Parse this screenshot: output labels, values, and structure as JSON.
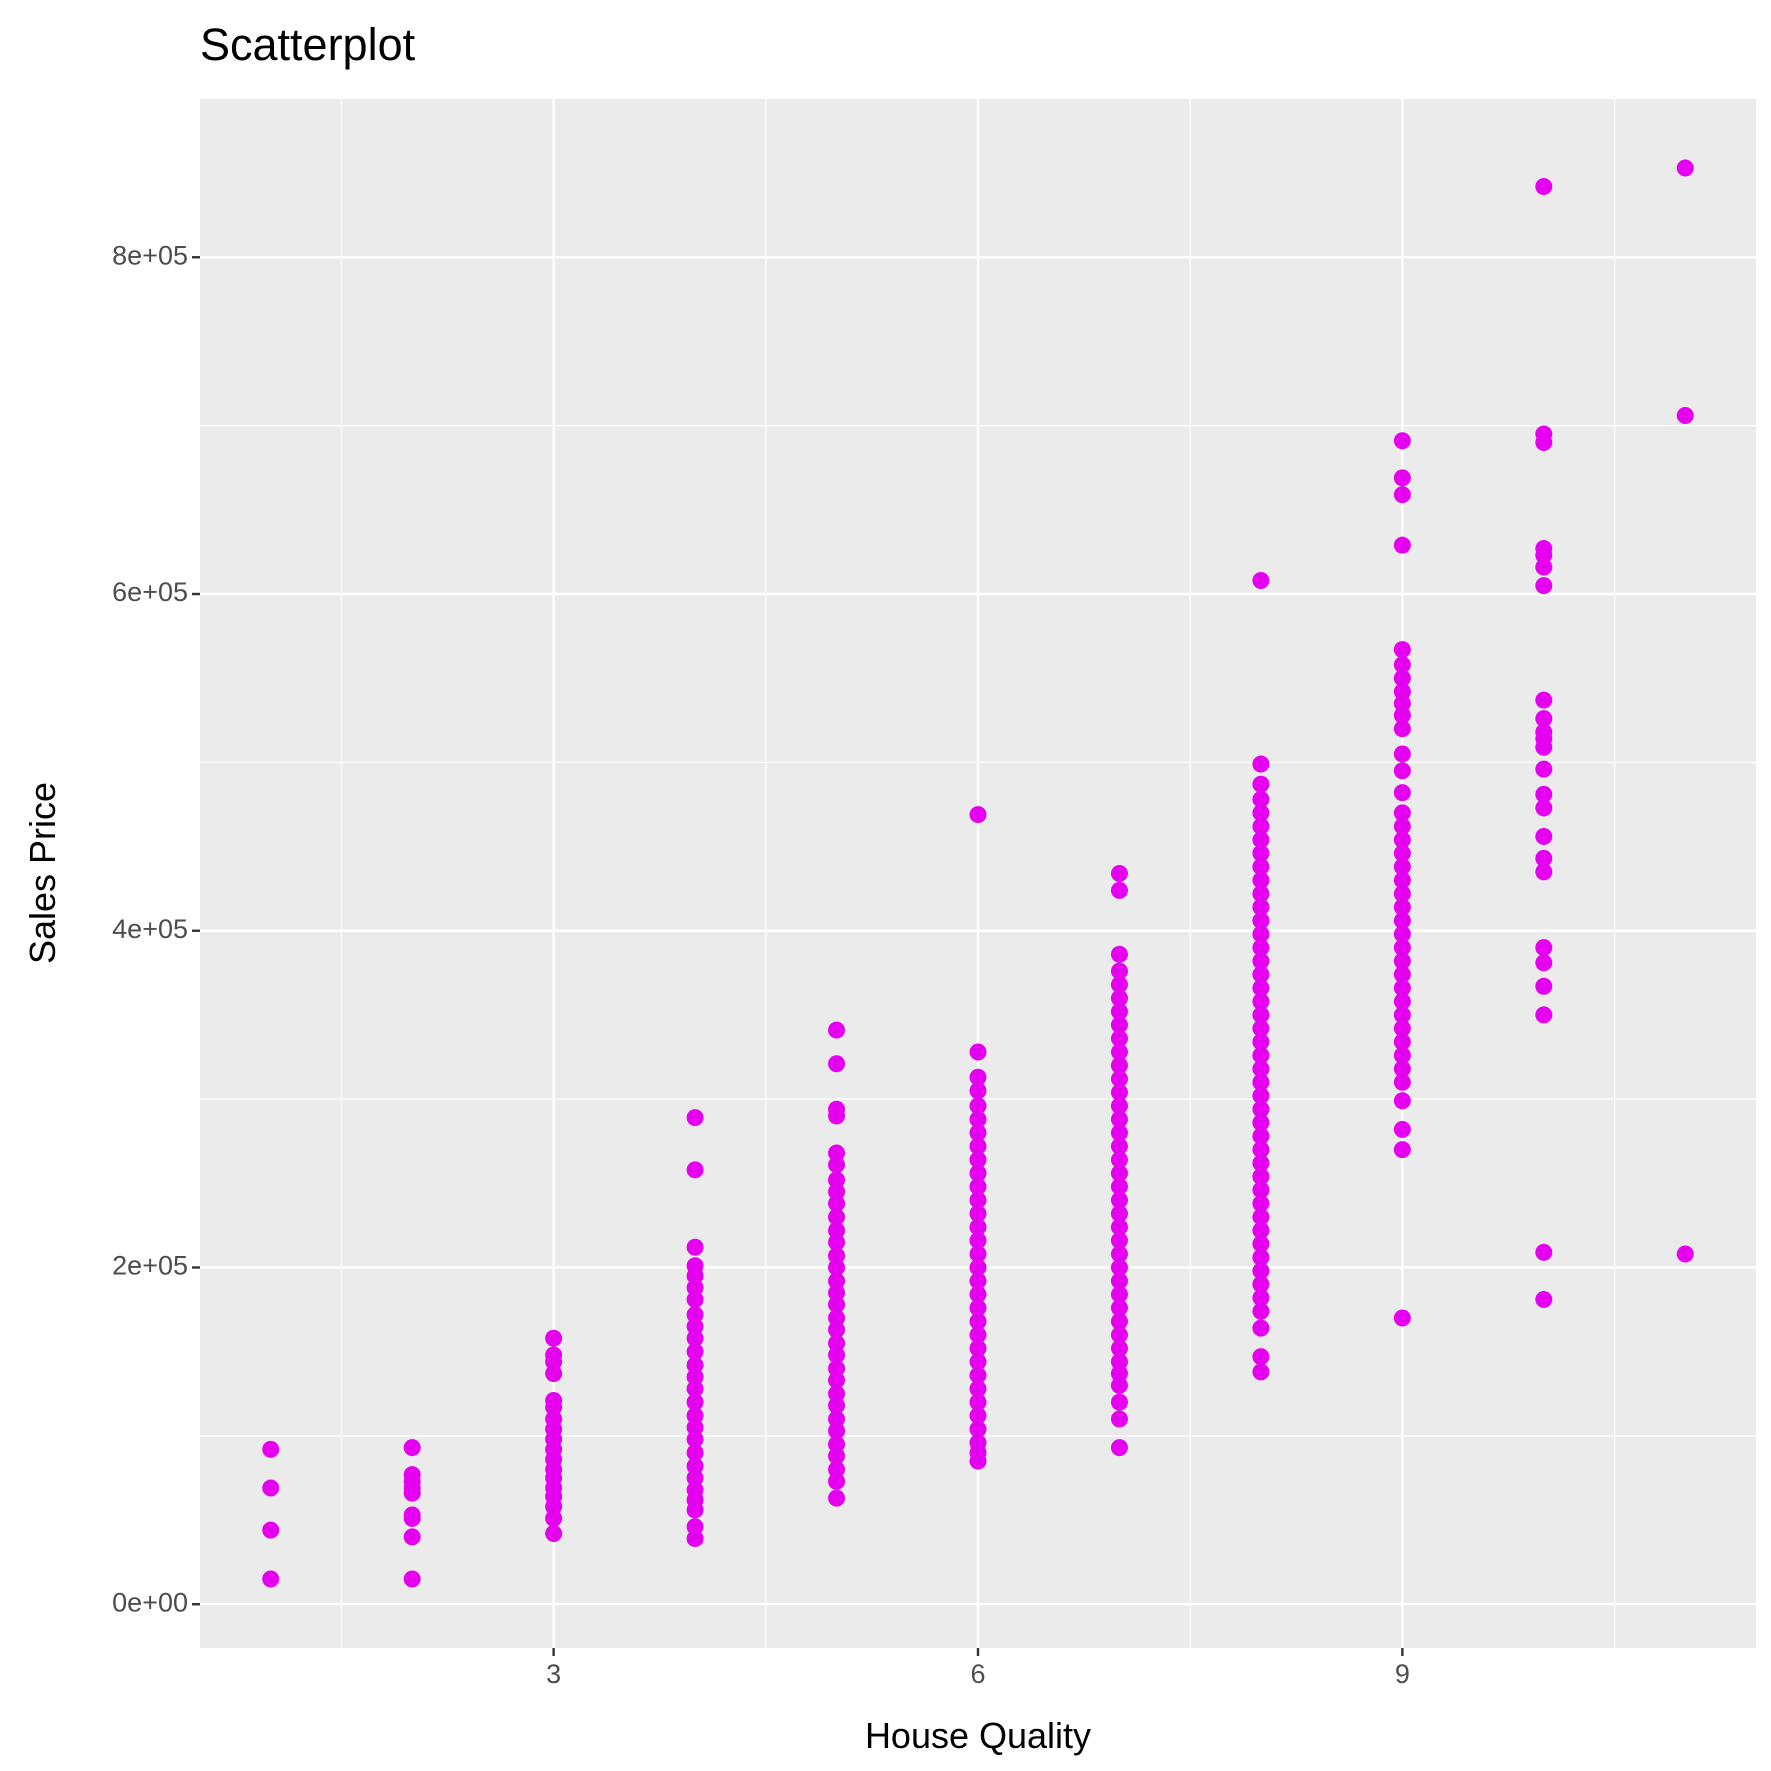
{
  "chart_data": {
    "type": "scatter",
    "title": "Scatterplot",
    "x_label": "House Quality",
    "y_label": "Sales Price",
    "color": "#e600f0",
    "grid": true,
    "xlim": [
      0.5,
      11.5
    ],
    "ylim": [
      -26000,
      894000
    ],
    "xticks": [
      3,
      6,
      9
    ],
    "yticks": [
      {
        "value": 0,
        "label": "0e+00"
      },
      {
        "value": 200000,
        "label": "2e+05"
      },
      {
        "value": 400000,
        "label": "4e+05"
      },
      {
        "value": 600000,
        "label": "6e+05"
      },
      {
        "value": 800000,
        "label": "8e+05"
      }
    ],
    "xminor": [
      1.5,
      4.5,
      7.5,
      10.5
    ],
    "yminor": [
      100000,
      300000,
      500000,
      700000
    ],
    "x": [
      1,
      1,
      1,
      1,
      2,
      2,
      2,
      2,
      2,
      2,
      2,
      2,
      2,
      3,
      3,
      3,
      3,
      3,
      3,
      3,
      3,
      3,
      3,
      3,
      3,
      3,
      3,
      3,
      3,
      3,
      3,
      4,
      4,
      4,
      4,
      4,
      4,
      4,
      4,
      4,
      4,
      4,
      4,
      4,
      4,
      4,
      4,
      4,
      4,
      4,
      4,
      4,
      4,
      4,
      4,
      4,
      4,
      5,
      5,
      5,
      5,
      5,
      5,
      5,
      5,
      5,
      5,
      5,
      5,
      5,
      5,
      5,
      5,
      5,
      5,
      5,
      5,
      5,
      5,
      5,
      5,
      5,
      5,
      5,
      5,
      5,
      5,
      5,
      5,
      6,
      6,
      6,
      6,
      6,
      6,
      6,
      6,
      6,
      6,
      6,
      6,
      6,
      6,
      6,
      6,
      6,
      6,
      6,
      6,
      6,
      6,
      6,
      6,
      6,
      6,
      6,
      6,
      6,
      6,
      6,
      6,
      7,
      7,
      7,
      7,
      7,
      7,
      7,
      7,
      7,
      7,
      7,
      7,
      7,
      7,
      7,
      7,
      7,
      7,
      7,
      7,
      7,
      7,
      7,
      7,
      7,
      7,
      7,
      7,
      7,
      7,
      7,
      7,
      7,
      7,
      7,
      7,
      7,
      7,
      8,
      8,
      8,
      8,
      8,
      8,
      8,
      8,
      8,
      8,
      8,
      8,
      8,
      8,
      8,
      8,
      8,
      8,
      8,
      8,
      8,
      8,
      8,
      8,
      8,
      8,
      8,
      8,
      8,
      8,
      8,
      8,
      8,
      8,
      8,
      8,
      8,
      8,
      8,
      8,
      8,
      8,
      8,
      8,
      8,
      9,
      9,
      9,
      9,
      9,
      9,
      9,
      9,
      9,
      9,
      9,
      9,
      9,
      9,
      9,
      9,
      9,
      9,
      9,
      9,
      9,
      9,
      9,
      9,
      9,
      9,
      9,
      9,
      9,
      9,
      9,
      9,
      9,
      9,
      9,
      9,
      9,
      9,
      9,
      10,
      10,
      10,
      10,
      10,
      10,
      10,
      10,
      10,
      10,
      10,
      10,
      10,
      10,
      10,
      10,
      10,
      10,
      10,
      10,
      10,
      10,
      10,
      10,
      11,
      11,
      11
    ],
    "values": [
      92000,
      69000,
      44000,
      15000,
      93000,
      77000,
      73000,
      69000,
      66000,
      53000,
      51000,
      40000,
      15000,
      158000,
      148000,
      144000,
      137000,
      121000,
      117000,
      110000,
      104000,
      98000,
      92000,
      86000,
      80000,
      75000,
      69000,
      64000,
      58000,
      51000,
      42000,
      289000,
      258000,
      212000,
      201000,
      195000,
      188000,
      181000,
      172000,
      165000,
      158000,
      150000,
      142000,
      135000,
      128000,
      120000,
      112000,
      105000,
      98000,
      90000,
      82000,
      75000,
      68000,
      62000,
      56000,
      46000,
      39000,
      341000,
      321000,
      294000,
      290000,
      268000,
      261000,
      252000,
      245000,
      238000,
      230000,
      222000,
      215000,
      207000,
      200000,
      192000,
      185000,
      178000,
      170000,
      163000,
      155000,
      148000,
      140000,
      133000,
      125000,
      118000,
      110000,
      103000,
      95000,
      88000,
      80000,
      73000,
      63000,
      469000,
      328000,
      313000,
      305000,
      296000,
      288000,
      280000,
      272000,
      264000,
      256000,
      248000,
      240000,
      232000,
      224000,
      216000,
      208000,
      200000,
      192000,
      184000,
      176000,
      168000,
      160000,
      152000,
      144000,
      136000,
      128000,
      120000,
      112000,
      104000,
      96000,
      90000,
      85000,
      434000,
      424000,
      386000,
      376000,
      368000,
      360000,
      352000,
      344000,
      336000,
      328000,
      320000,
      312000,
      304000,
      296000,
      288000,
      280000,
      272000,
      264000,
      256000,
      248000,
      240000,
      232000,
      224000,
      216000,
      208000,
      200000,
      192000,
      184000,
      176000,
      168000,
      160000,
      152000,
      144000,
      137000,
      130000,
      120000,
      110000,
      93000,
      608000,
      499000,
      487000,
      478000,
      470000,
      462000,
      454000,
      446000,
      438000,
      430000,
      422000,
      414000,
      406000,
      398000,
      390000,
      382000,
      374000,
      366000,
      358000,
      350000,
      342000,
      334000,
      326000,
      318000,
      310000,
      302000,
      294000,
      286000,
      278000,
      270000,
      262000,
      254000,
      246000,
      238000,
      230000,
      222000,
      214000,
      206000,
      198000,
      190000,
      182000,
      174000,
      164000,
      147000,
      138000,
      691000,
      669000,
      659000,
      629000,
      567000,
      558000,
      550000,
      542000,
      535000,
      528000,
      520000,
      505000,
      495000,
      482000,
      470000,
      462000,
      454000,
      446000,
      438000,
      430000,
      422000,
      414000,
      406000,
      398000,
      390000,
      382000,
      374000,
      366000,
      358000,
      350000,
      342000,
      334000,
      326000,
      318000,
      310000,
      299000,
      282000,
      270000,
      170000,
      842000,
      695000,
      690000,
      627000,
      623000,
      616000,
      605000,
      537000,
      526000,
      518000,
      514000,
      509000,
      496000,
      481000,
      473000,
      456000,
      443000,
      435000,
      390000,
      381000,
      367000,
      350000,
      209000,
      181000,
      853000,
      706000,
      208000
    ]
  }
}
